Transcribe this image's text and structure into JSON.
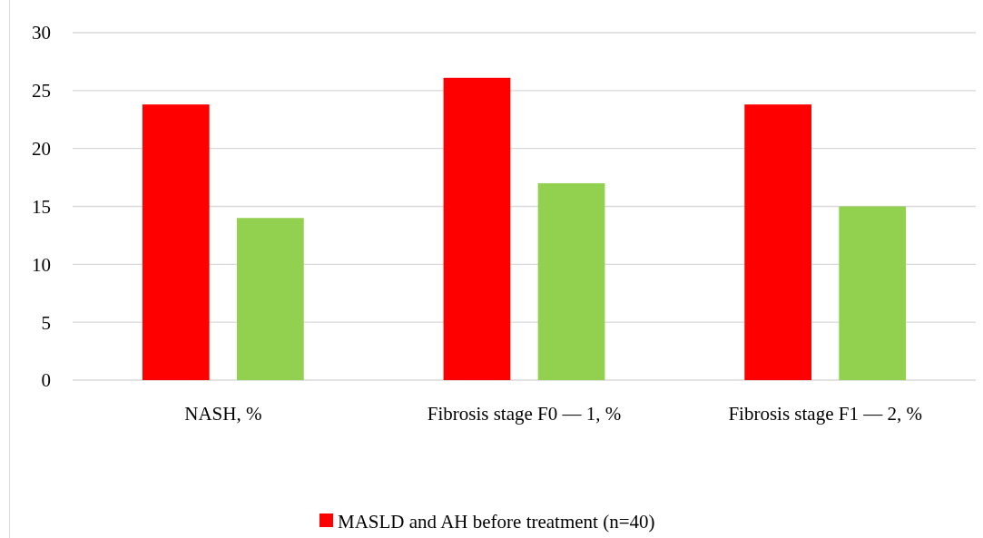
{
  "chart_data": {
    "type": "bar",
    "categories": [
      "NASH, %",
      "Fibrosis stage F0 — 1, %",
      "Fibrosis stage F1 — 2, %"
    ],
    "series": [
      {
        "name": "MASLD and AH before treatment (n=40)",
        "color": "#ff0000",
        "values": [
          23.8,
          26.1,
          23.8
        ]
      },
      {
        "color": "#92d050",
        "values": [
          14,
          17,
          15
        ]
      }
    ],
    "ylim": [
      0,
      30
    ],
    "yticks": [
      0,
      5,
      10,
      15,
      20,
      25,
      30
    ],
    "grid": "y",
    "legend": "bottom"
  }
}
